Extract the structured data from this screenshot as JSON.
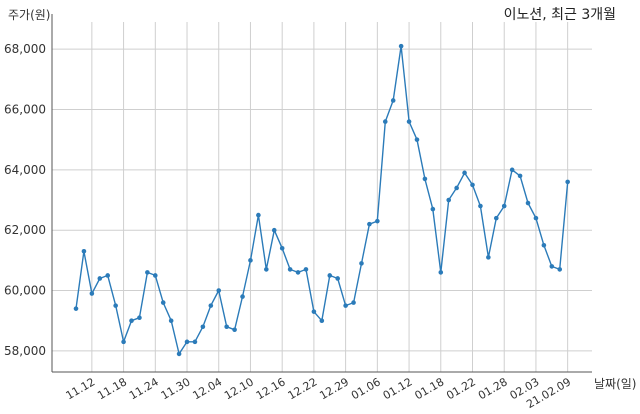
{
  "chart_data": {
    "type": "line",
    "title": "이노션, 최근 3개월",
    "xlabel": "날짜(일)",
    "ylabel": "주가(원)",
    "ylim": [
      57300,
      68900
    ],
    "y_ticks": [
      58000,
      60000,
      62000,
      64000,
      66000,
      68000
    ],
    "y_tick_labels": [
      "58,000",
      "60,000",
      "62,000",
      "64,000",
      "66,000",
      "68,000"
    ],
    "x_tick_labels": [
      "11.12",
      "11.18",
      "11.24",
      "11.30",
      "12.04",
      "12.10",
      "12.16",
      "12.22",
      "12.29",
      "01.06",
      "01.12",
      "01.18",
      "01.22",
      "01.28",
      "02.03",
      "21.02.09"
    ],
    "x_tick_index": [
      2,
      6,
      10,
      14,
      18,
      22,
      26,
      30,
      34,
      38,
      42,
      46,
      50,
      54,
      58,
      62
    ],
    "grid": true,
    "series": [
      {
        "color": "#2b7bb9",
        "values": [
          59400,
          61300,
          59900,
          60400,
          60500,
          59500,
          58300,
          59000,
          59100,
          60600,
          60500,
          59600,
          59000,
          57900,
          58300,
          58300,
          58800,
          59500,
          60000,
          58800,
          58700,
          59800,
          61000,
          62500,
          60700,
          62000,
          61400,
          60700,
          60600,
          60700,
          59300,
          59000,
          60500,
          60400,
          59500,
          59600,
          60900,
          62200,
          62300,
          65600,
          66300,
          68100,
          65600,
          65000,
          63700,
          62700,
          60600,
          63000,
          63400,
          63900,
          63500,
          62800,
          61100,
          62400,
          62800,
          64000,
          63800,
          62900,
          62400,
          61500,
          60800,
          60700,
          63600
        ]
      }
    ]
  }
}
